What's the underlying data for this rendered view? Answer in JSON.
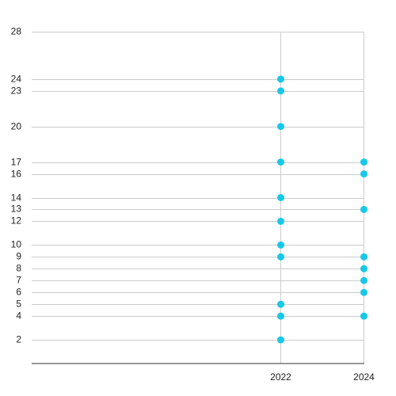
{
  "chart_data": {
    "type": "scatter",
    "x_ticks": [
      "2022",
      "2024"
    ],
    "y_ticks": [
      2,
      4,
      5,
      6,
      7,
      8,
      9,
      10,
      12,
      13,
      14,
      16,
      17,
      20,
      23,
      24,
      28
    ],
    "ylim": [
      0,
      28
    ],
    "grid": "horizontal at y ticks; vertical at x ticks",
    "series": [
      {
        "color": "#17c8e8",
        "points": [
          {
            "x": 2022,
            "y": 24
          },
          {
            "x": 2022,
            "y": 23
          },
          {
            "x": 2022,
            "y": 20
          },
          {
            "x": 2022,
            "y": 17
          },
          {
            "x": 2022,
            "y": 14
          },
          {
            "x": 2022,
            "y": 12
          },
          {
            "x": 2022,
            "y": 10
          },
          {
            "x": 2022,
            "y": 9
          },
          {
            "x": 2022,
            "y": 5
          },
          {
            "x": 2022,
            "y": 4
          },
          {
            "x": 2022,
            "y": 2
          },
          {
            "x": 2024,
            "y": 17
          },
          {
            "x": 2024,
            "y": 16
          },
          {
            "x": 2024,
            "y": 13
          },
          {
            "x": 2024,
            "y": 9
          },
          {
            "x": 2024,
            "y": 8
          },
          {
            "x": 2024,
            "y": 7
          },
          {
            "x": 2024,
            "y": 6
          },
          {
            "x": 2024,
            "y": 4
          }
        ]
      }
    ]
  }
}
